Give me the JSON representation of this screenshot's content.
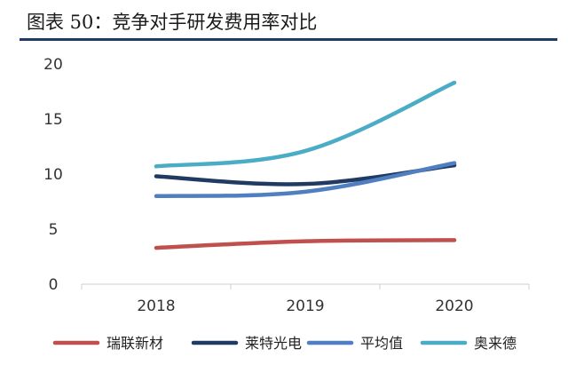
{
  "title": "图表 50：竞争对手研发费用率对比",
  "chart_data": {
    "type": "line",
    "title": "图表 50：竞争对手研发费用率对比",
    "xlabel": "",
    "ylabel": "",
    "categories": [
      "2018",
      "2019",
      "2020"
    ],
    "ylim": [
      0,
      20
    ],
    "yticks": [
      0,
      5,
      10,
      15,
      20
    ],
    "grid": false,
    "legend_position": "bottom",
    "series": [
      {
        "name": "瑞联新材",
        "color": "#c0504d",
        "values": [
          3.3,
          3.9,
          4.0
        ]
      },
      {
        "name": "莱特光电",
        "color": "#1f3a63",
        "values": [
          9.8,
          9.1,
          10.8
        ]
      },
      {
        "name": "平均值",
        "color": "#4f7fc0",
        "values": [
          8.0,
          8.4,
          11.0
        ]
      },
      {
        "name": "奥来德",
        "color": "#4bacc6",
        "values": [
          10.7,
          12.1,
          18.3
        ]
      }
    ]
  }
}
